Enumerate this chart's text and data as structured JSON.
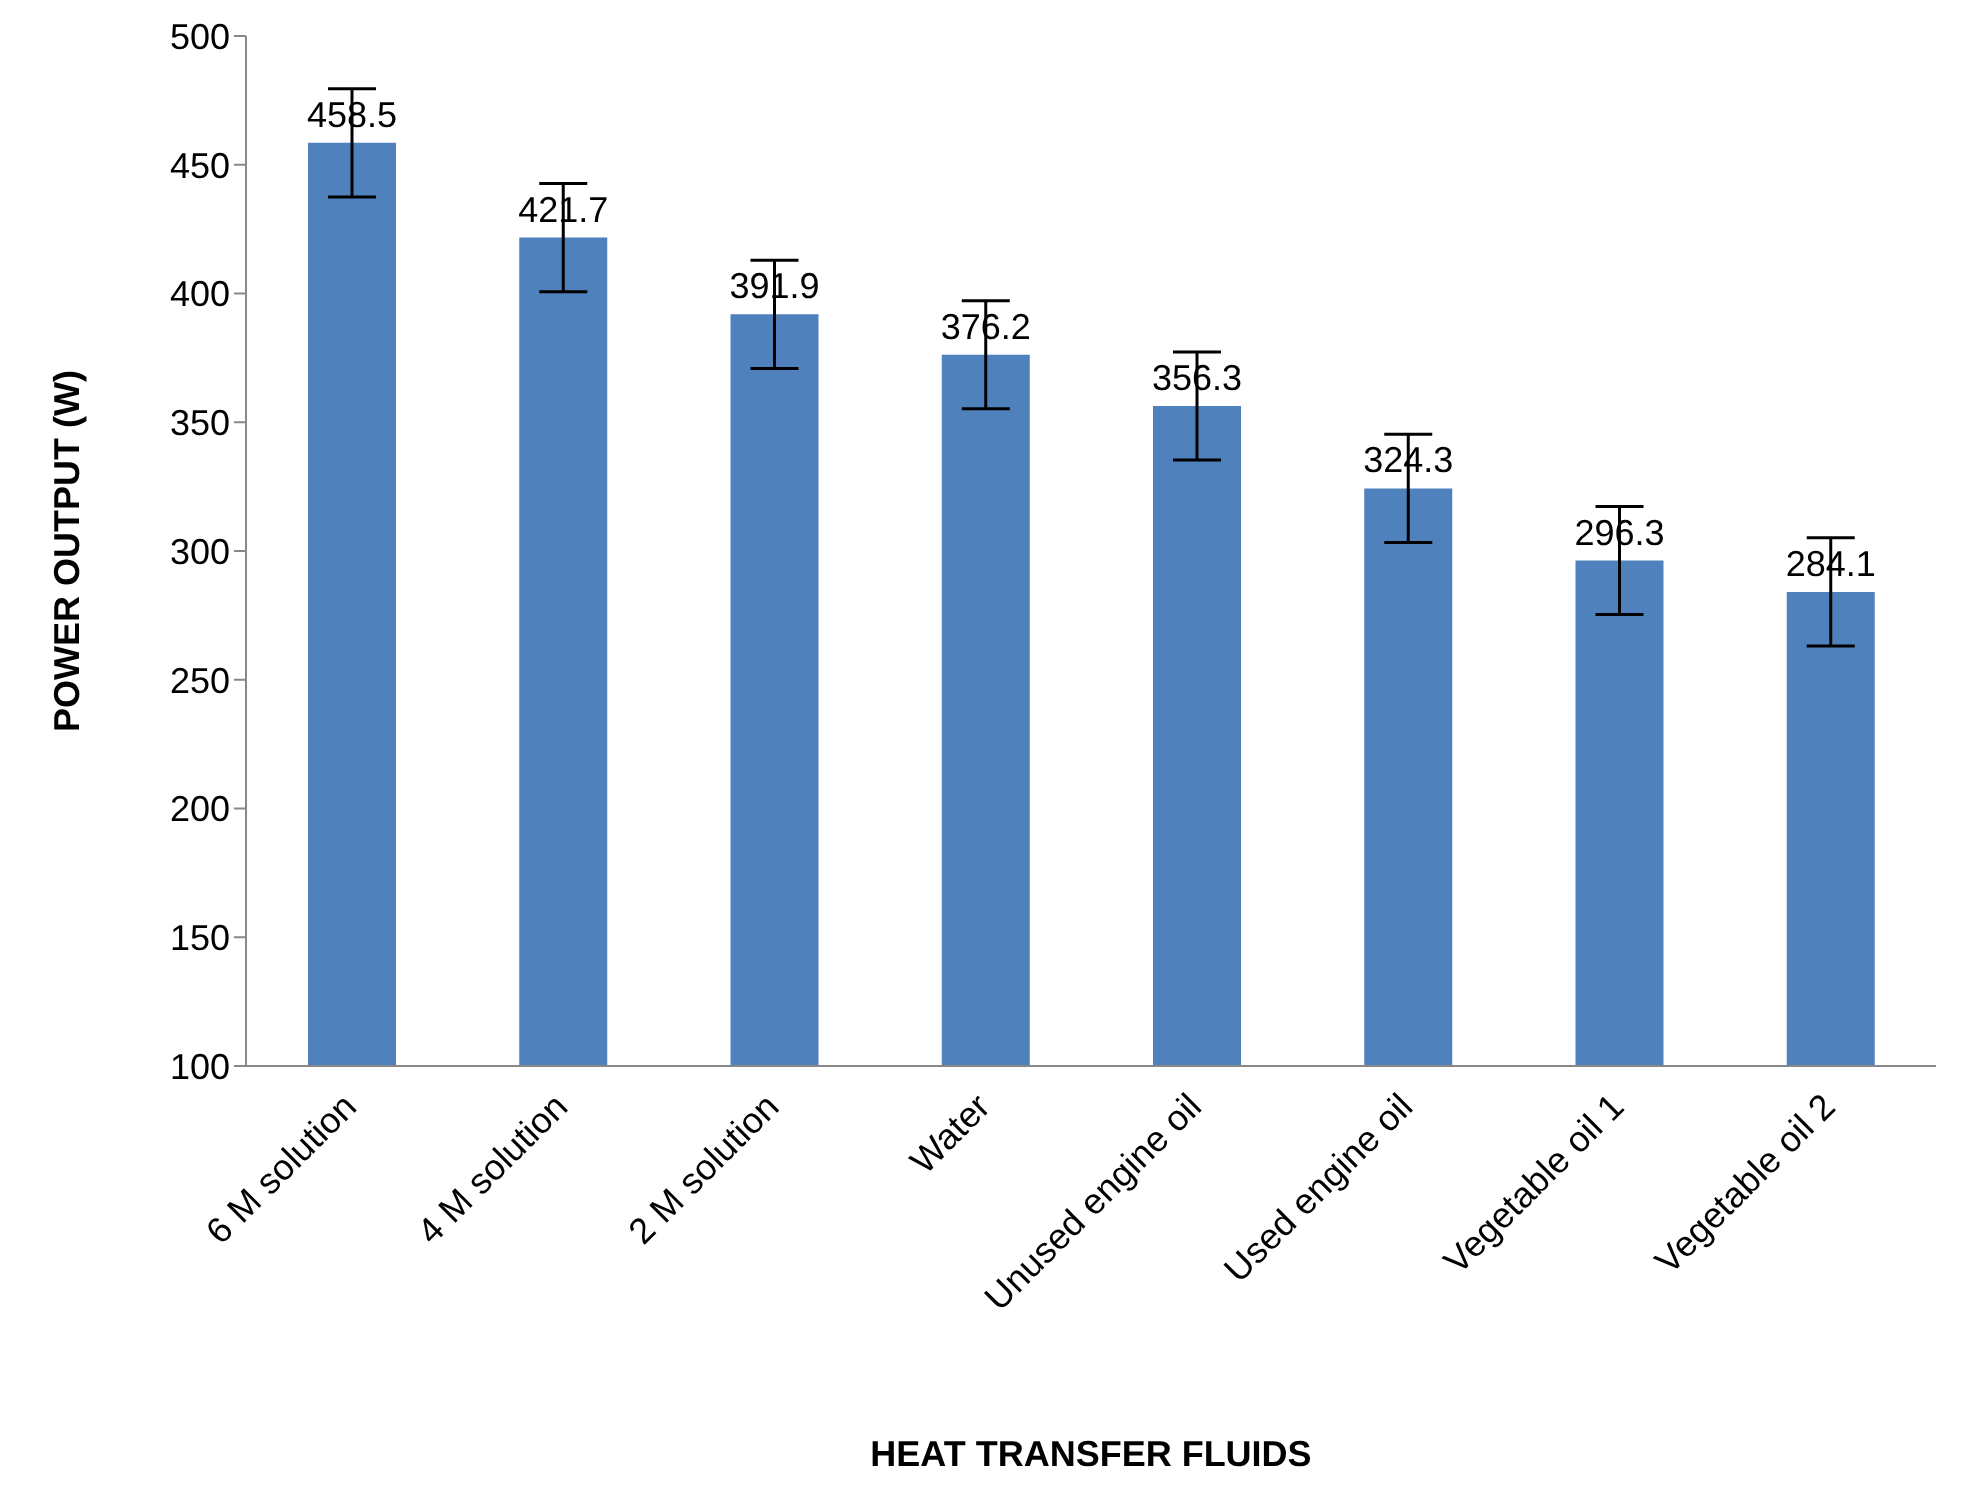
{
  "chart_data": {
    "type": "bar",
    "xlabel": "HEAT TRANSFER FLUIDS",
    "ylabel": "POWER OUTPUT (W)",
    "categories": [
      "6 M solution",
      "4 M solution",
      "2 M solution",
      "Water",
      "Unused engine oil",
      "Used engine oil",
      "Vegetable oil 1",
      "Vegetable oil 2"
    ],
    "values": [
      458.5,
      421.7,
      391.9,
      376.2,
      356.3,
      324.3,
      296.3,
      284.1
    ],
    "errors": [
      21,
      21,
      21,
      21,
      21,
      21,
      21,
      21
    ],
    "color": "#4f81bd",
    "data_labels": true,
    "ylim": [
      100,
      500
    ],
    "yticks": [
      100,
      150,
      200,
      250,
      300,
      350,
      400,
      450,
      500
    ],
    "grid": false,
    "legend": false
  }
}
